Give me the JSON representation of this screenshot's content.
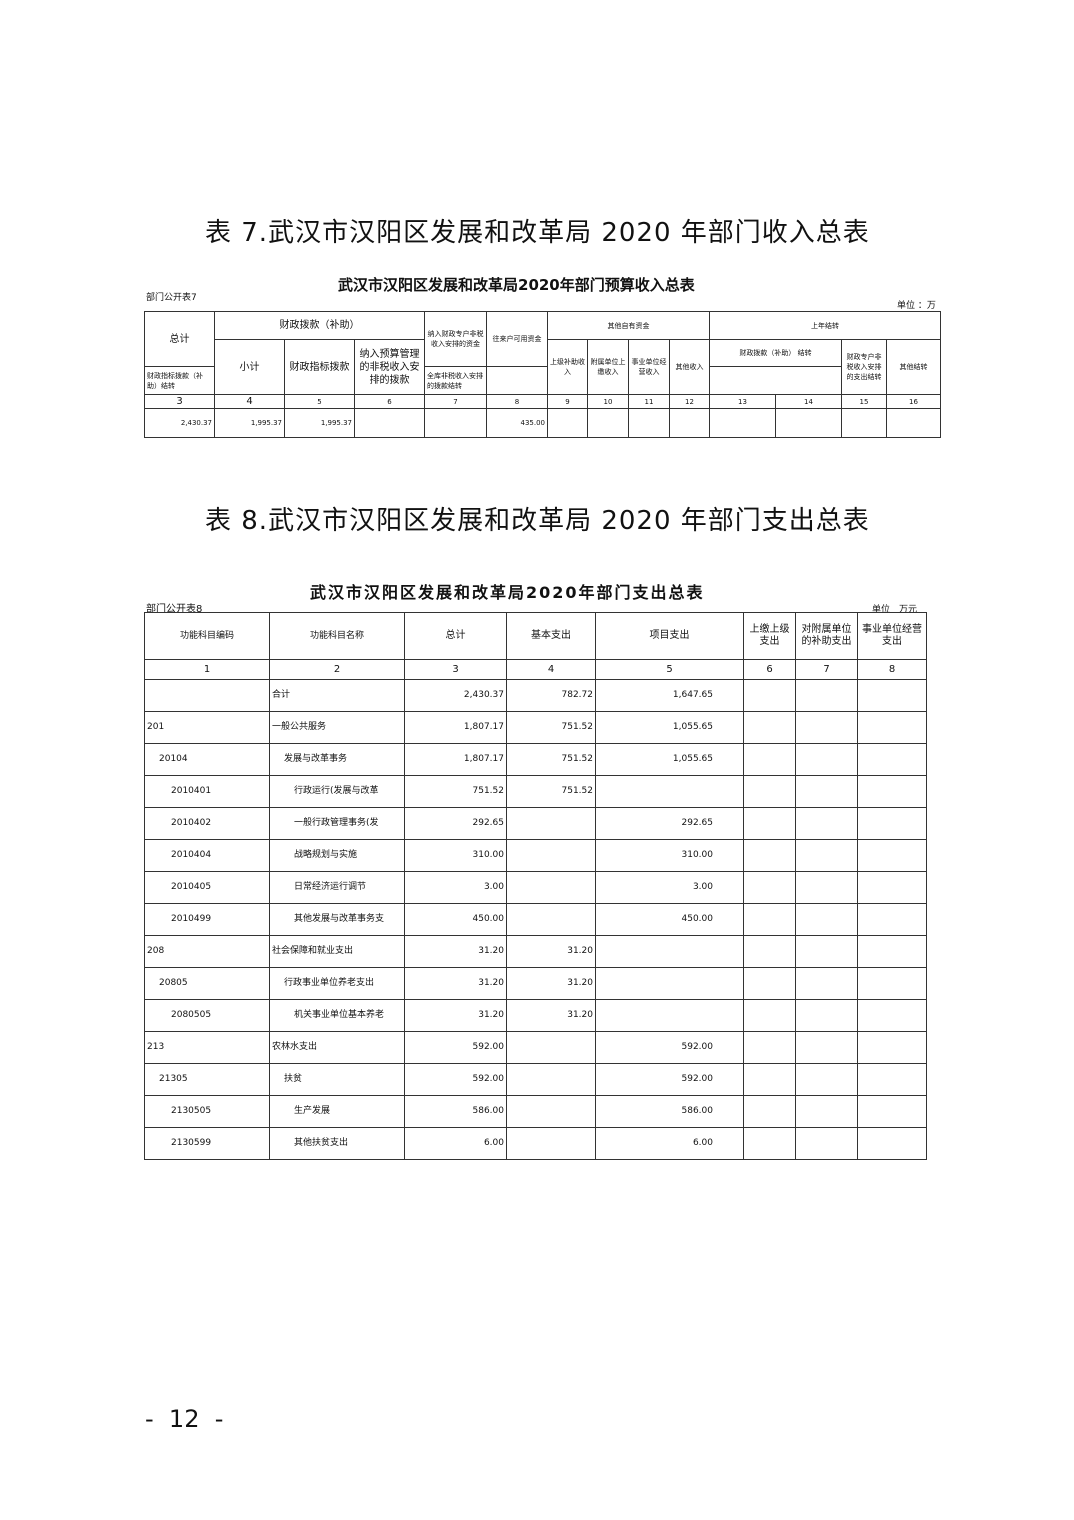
{
  "table7": {
    "heading": "表 7.武汉市汉阳区发展和改革局 2020 年部门收入总表",
    "title": "武汉市汉阳区发展和改革局2020年部门预算收入总表",
    "form_no": "部门公开表7",
    "unit": "单位 ：万",
    "headers": {
      "total": "总计",
      "fiscal": "财政拨款（补助）",
      "subtotal": "小计",
      "indicator": "财政指标拨款",
      "nontax": "纳入预算管理的非税收入安排的拨款",
      "special": "纳入财政专户非税收入安排的资金",
      "account": "往来户可用资金",
      "other_own": "其他自有资金",
      "c9": "上级补助收入",
      "c10": "附属单位上缴收入",
      "c11": "事业单位经营收入",
      "c12": "其他收入",
      "carry": "上年结转",
      "carry_fiscal": "财政拨款（补助） 结转",
      "c13": "财政指标拨款（补助）结转",
      "c14": "全库非税收入安排的拨款结转",
      "c15": "财政专户非税收入安排的支出结转",
      "c16": "其他结转"
    },
    "col_numbers": [
      "3",
      "4",
      "5",
      "6",
      "7",
      "8",
      "9",
      "10",
      "11",
      "12",
      "13",
      "14",
      "15",
      "16"
    ],
    "row": [
      "2,430.37",
      "1,995.37",
      "1,995.37",
      "",
      "",
      "435.00",
      "",
      "",
      "",
      "",
      "",
      "",
      "",
      ""
    ]
  },
  "table8": {
    "heading": "表 8.武汉市汉阳区发展和改革局 2020 年部门支出总表",
    "title": "武汉市汉阳区发展和改革局2020年部门支出总表",
    "form_no": "部门公开表8",
    "unit": "单位　万元",
    "headers": [
      "功能科目编码",
      "功能科目名称",
      "总计",
      "基本支出",
      "项目支出",
      "上缴上级支出",
      "对附属单位的补助支出",
      "事业单位经营支出"
    ],
    "col_numbers": [
      "1",
      "2",
      "3",
      "4",
      "5",
      "6",
      "7",
      "8"
    ],
    "rows": [
      [
        "",
        "合计",
        "2,430.37",
        "782.72",
        "1,647.65"
      ],
      [
        "201",
        "一般公共服务",
        "1,807.17",
        "751.52",
        "1,055.65"
      ],
      [
        "20104",
        "发展与改革事务",
        "1,807.17",
        "751.52",
        "1,055.65"
      ],
      [
        "2010401",
        "行政运行(发展与改革",
        "751.52",
        "751.52",
        ""
      ],
      [
        "2010402",
        "一般行政管理事务(发",
        "292.65",
        "",
        "292.65"
      ],
      [
        "2010404",
        "战略规划与实施",
        "310.00",
        "",
        "310.00"
      ],
      [
        "2010405",
        "日常经济运行调节",
        "3.00",
        "",
        "3.00"
      ],
      [
        "2010499",
        "其他发展与改革事务支",
        "450.00",
        "",
        "450.00"
      ],
      [
        "208",
        "社会保障和就业支出",
        "31.20",
        "31.20",
        ""
      ],
      [
        "20805",
        "行政事业单位养老支出",
        "31.20",
        "31.20",
        ""
      ],
      [
        "2080505",
        "机关事业单位基本养老",
        "31.20",
        "31.20",
        ""
      ],
      [
        "213",
        "农林水支出",
        "592.00",
        "",
        "592.00"
      ],
      [
        "21305",
        "扶贫",
        "592.00",
        "",
        "592.00"
      ],
      [
        "2130505",
        "生产发展",
        "586.00",
        "",
        "586.00"
      ],
      [
        "2130599",
        "其他扶贫支出",
        "6.00",
        "",
        "6.00"
      ]
    ]
  },
  "page_number": "-  12  -"
}
